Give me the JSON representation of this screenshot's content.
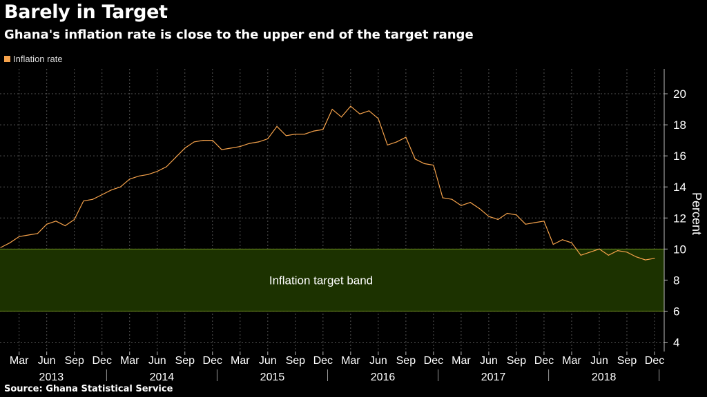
{
  "header": {
    "title": "Barely in Target",
    "subtitle": "Ghana's inflation rate is close to the upper end of the target range"
  },
  "legend": {
    "label": "Inflation rate"
  },
  "source": "Source: Ghana Statistical Service",
  "colors": {
    "line": "#f5a24b",
    "band": "#1c3200",
    "band_edge": "#6f8f1f",
    "background": "#000000",
    "grid": "#555555"
  },
  "chart_data": {
    "type": "line",
    "series": [
      {
        "name": "Inflation rate",
        "x": [
          "2013-01",
          "2013-02",
          "2013-03",
          "2013-04",
          "2013-05",
          "2013-06",
          "2013-07",
          "2013-08",
          "2013-09",
          "2013-10",
          "2013-11",
          "2013-12",
          "2014-01",
          "2014-02",
          "2014-03",
          "2014-04",
          "2014-05",
          "2014-06",
          "2014-07",
          "2014-08",
          "2014-09",
          "2014-10",
          "2014-11",
          "2014-12",
          "2015-01",
          "2015-02",
          "2015-03",
          "2015-04",
          "2015-05",
          "2015-06",
          "2015-07",
          "2015-08",
          "2015-09",
          "2015-10",
          "2015-11",
          "2015-12",
          "2016-01",
          "2016-02",
          "2016-03",
          "2016-04",
          "2016-05",
          "2016-06",
          "2016-07",
          "2016-08",
          "2016-09",
          "2016-10",
          "2016-11",
          "2016-12",
          "2017-01",
          "2017-02",
          "2017-03",
          "2017-04",
          "2017-05",
          "2017-06",
          "2017-07",
          "2017-08",
          "2017-09",
          "2017-10",
          "2017-11",
          "2017-12",
          "2018-01",
          "2018-02",
          "2018-03",
          "2018-04",
          "2018-05",
          "2018-06",
          "2018-07",
          "2018-08",
          "2018-09",
          "2018-10",
          "2018-11",
          "2018-12"
        ],
        "values": [
          10.1,
          10.4,
          10.8,
          10.9,
          11.0,
          11.6,
          11.8,
          11.5,
          11.9,
          13.1,
          13.2,
          13.5,
          13.8,
          14.0,
          14.5,
          14.7,
          14.8,
          15.0,
          15.3,
          15.9,
          16.5,
          16.9,
          17.0,
          17.0,
          16.4,
          16.5,
          16.6,
          16.8,
          16.9,
          17.1,
          17.9,
          17.3,
          17.4,
          17.4,
          17.6,
          17.7,
          19.0,
          18.5,
          19.2,
          18.7,
          18.9,
          18.4,
          16.7,
          16.9,
          17.2,
          15.8,
          15.5,
          15.4,
          13.3,
          13.2,
          12.8,
          13.0,
          12.6,
          12.1,
          11.9,
          12.3,
          12.2,
          11.6,
          11.7,
          11.8,
          10.3,
          10.6,
          10.4,
          9.6,
          9.8,
          10.0,
          9.6,
          9.9,
          9.8,
          9.5,
          9.3,
          9.4
        ]
      }
    ],
    "target_band": {
      "low": 6,
      "high": 10,
      "label": "Inflation target band"
    },
    "ylim": [
      3.4,
      21.6
    ],
    "yticks": [
      4,
      6,
      8,
      10,
      12,
      14,
      16,
      18,
      20
    ],
    "ylabel": "Percent",
    "y_axis_position": "right",
    "month_ticks": [
      "Mar",
      "Jun",
      "Sep",
      "Dec",
      "Mar",
      "Jun",
      "Sep",
      "Dec",
      "Mar",
      "Jun",
      "Sep",
      "Dec",
      "Mar",
      "Jun",
      "Sep",
      "Dec",
      "Mar",
      "Jun",
      "Sep",
      "Dec",
      "Mar",
      "Jun",
      "Sep",
      "Dec"
    ],
    "years": [
      "2013",
      "2014",
      "2015",
      "2016",
      "2017",
      "2018"
    ],
    "grid": true,
    "legend_position": "top-left"
  }
}
